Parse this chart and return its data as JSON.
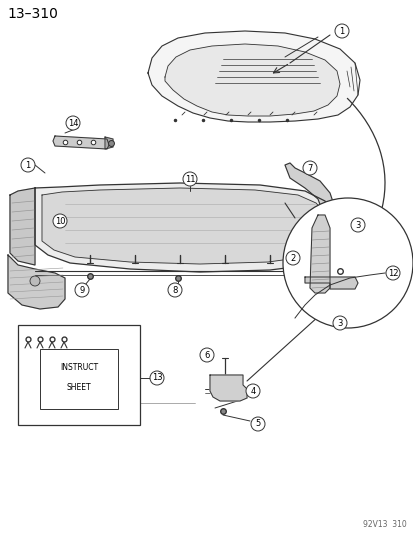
{
  "title": "13–310",
  "footer": "92V13  310",
  "background_color": "#ffffff",
  "fig_width": 4.14,
  "fig_height": 5.33,
  "dpi": 100,
  "line_color": "#333333",
  "text_color": "#000000",
  "gray_fill": "#e0e0e0",
  "dark_fill": "#b0b0b0"
}
